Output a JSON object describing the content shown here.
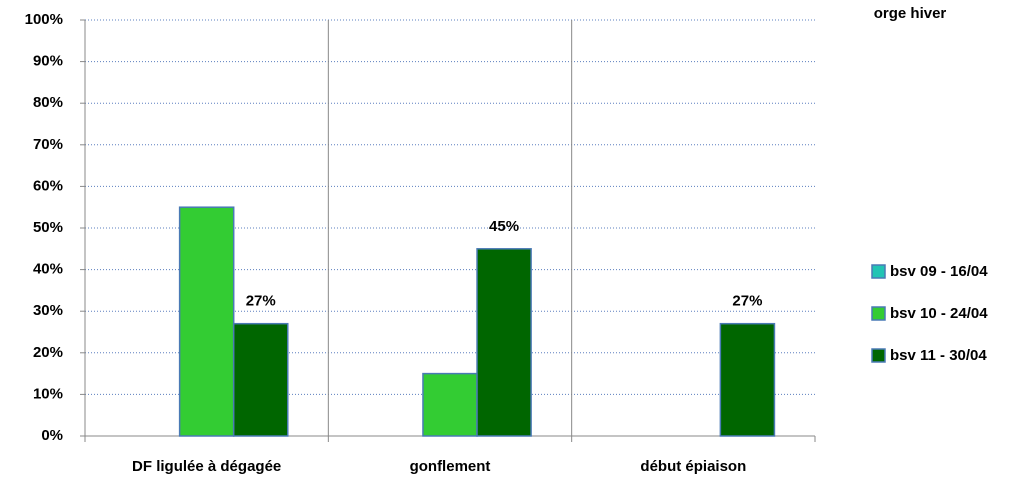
{
  "chart_data": {
    "type": "bar",
    "title": "orge hiver",
    "categories": [
      "DF ligulée à dégagée",
      "gonflement",
      "début épiaison"
    ],
    "series": [
      {
        "name": "bsv 09 - 16/04",
        "color": "#22c4b4",
        "values": [
          null,
          null,
          null
        ]
      },
      {
        "name": "bsv 10 - 24/04",
        "color": "#33cc33",
        "values": [
          55,
          15,
          null
        ]
      },
      {
        "name": "bsv 11 - 30/04",
        "color": "#006600",
        "values": [
          27,
          45,
          27
        ],
        "value_labels": [
          "27%",
          "45%",
          "27%"
        ]
      }
    ],
    "ylim": [
      0,
      100
    ],
    "yticks": [
      {
        "value": 0,
        "label": "0%"
      },
      {
        "value": 10,
        "label": "10%"
      },
      {
        "value": 20,
        "label": "20%"
      },
      {
        "value": 30,
        "label": "30%"
      },
      {
        "value": 40,
        "label": "40%"
      },
      {
        "value": 50,
        "label": "50%"
      },
      {
        "value": 60,
        "label": "60%"
      },
      {
        "value": 70,
        "label": "70%"
      },
      {
        "value": 80,
        "label": "80%"
      },
      {
        "value": 90,
        "label": "90%"
      },
      {
        "value": 100,
        "label": "100%"
      }
    ],
    "grid": true,
    "legend": "right"
  }
}
